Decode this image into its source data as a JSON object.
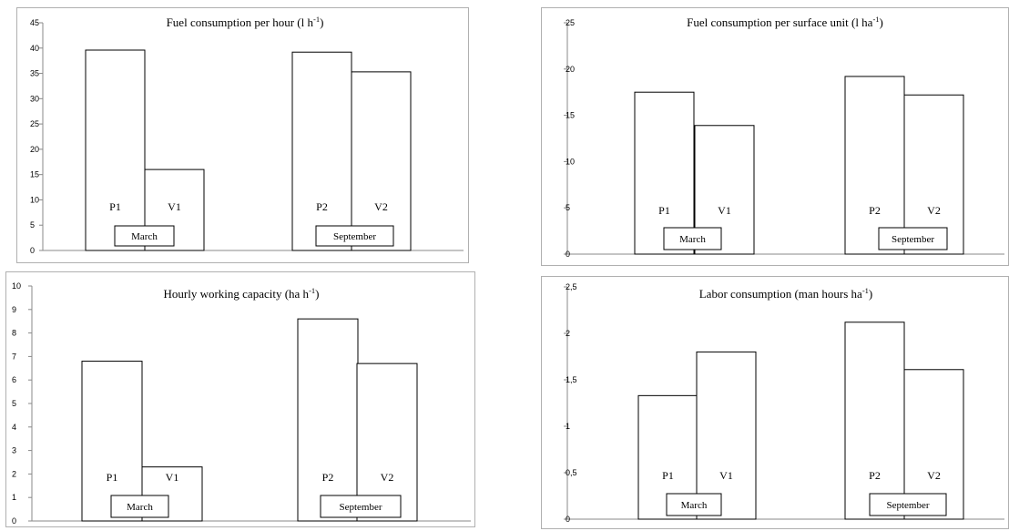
{
  "chart_data": [
    {
      "type": "bar",
      "title": "Fuel consumption per hour (l h",
      "title_unit_exp": "-1",
      "title_tail": ")",
      "ylim": [
        0,
        45
      ],
      "yticks": [
        "0",
        "5",
        "10",
        "15",
        "20",
        "25",
        "30",
        "35",
        "40",
        "45"
      ],
      "groups": [
        "March",
        "September"
      ],
      "bars": [
        {
          "label": "P1",
          "group": "March",
          "value": 39.6
        },
        {
          "label": "V1",
          "group": "March",
          "value": 16
        },
        {
          "label": "P2",
          "group": "September",
          "value": 39.2
        },
        {
          "label": "V2",
          "group": "September",
          "value": 35.3
        }
      ]
    },
    {
      "type": "bar",
      "title": "Fuel consumption per surface unit (l ha",
      "title_unit_exp": "-1",
      "title_tail": ")",
      "ylim": [
        0,
        25
      ],
      "yticks": [
        "0",
        "5",
        "10",
        "15",
        "20",
        "25"
      ],
      "groups": [
        "March",
        "September"
      ],
      "bars": [
        {
          "label": "P1",
          "group": "March",
          "value": 17.5
        },
        {
          "label": "V1",
          "group": "March",
          "value": 13.9
        },
        {
          "label": "P2",
          "group": "September",
          "value": 19.2
        },
        {
          "label": "V2",
          "group": "September",
          "value": 17.2
        }
      ]
    },
    {
      "type": "bar",
      "title": "Hourly working capacity (ha h",
      "title_unit_exp": "-1",
      "title_tail": ")",
      "ylim": [
        0,
        10
      ],
      "yticks": [
        "0",
        "1",
        "2",
        "3",
        "4",
        "5",
        "6",
        "7",
        "8",
        "9",
        "10"
      ],
      "groups": [
        "March",
        "September"
      ],
      "bars": [
        {
          "label": "P1",
          "group": "March",
          "value": 6.8
        },
        {
          "label": "V1",
          "group": "March",
          "value": 2.3
        },
        {
          "label": "P2",
          "group": "September",
          "value": 8.6
        },
        {
          "label": "V2",
          "group": "September",
          "value": 6.7
        }
      ]
    },
    {
      "type": "bar",
      "title": "Labor consumption (man hours ha",
      "title_unit_exp": "-1",
      "title_tail": ")",
      "ylim": [
        0,
        2.5
      ],
      "yticks": [
        "0",
        "0,5",
        "1",
        "1,5",
        "2",
        "2,5"
      ],
      "groups": [
        "March",
        "September"
      ],
      "bars": [
        {
          "label": "P1",
          "group": "March",
          "value": 1.33
        },
        {
          "label": "V1",
          "group": "March",
          "value": 1.8
        },
        {
          "label": "P2",
          "group": "September",
          "value": 2.12
        },
        {
          "label": "V2",
          "group": "September",
          "value": 1.61
        }
      ]
    }
  ]
}
